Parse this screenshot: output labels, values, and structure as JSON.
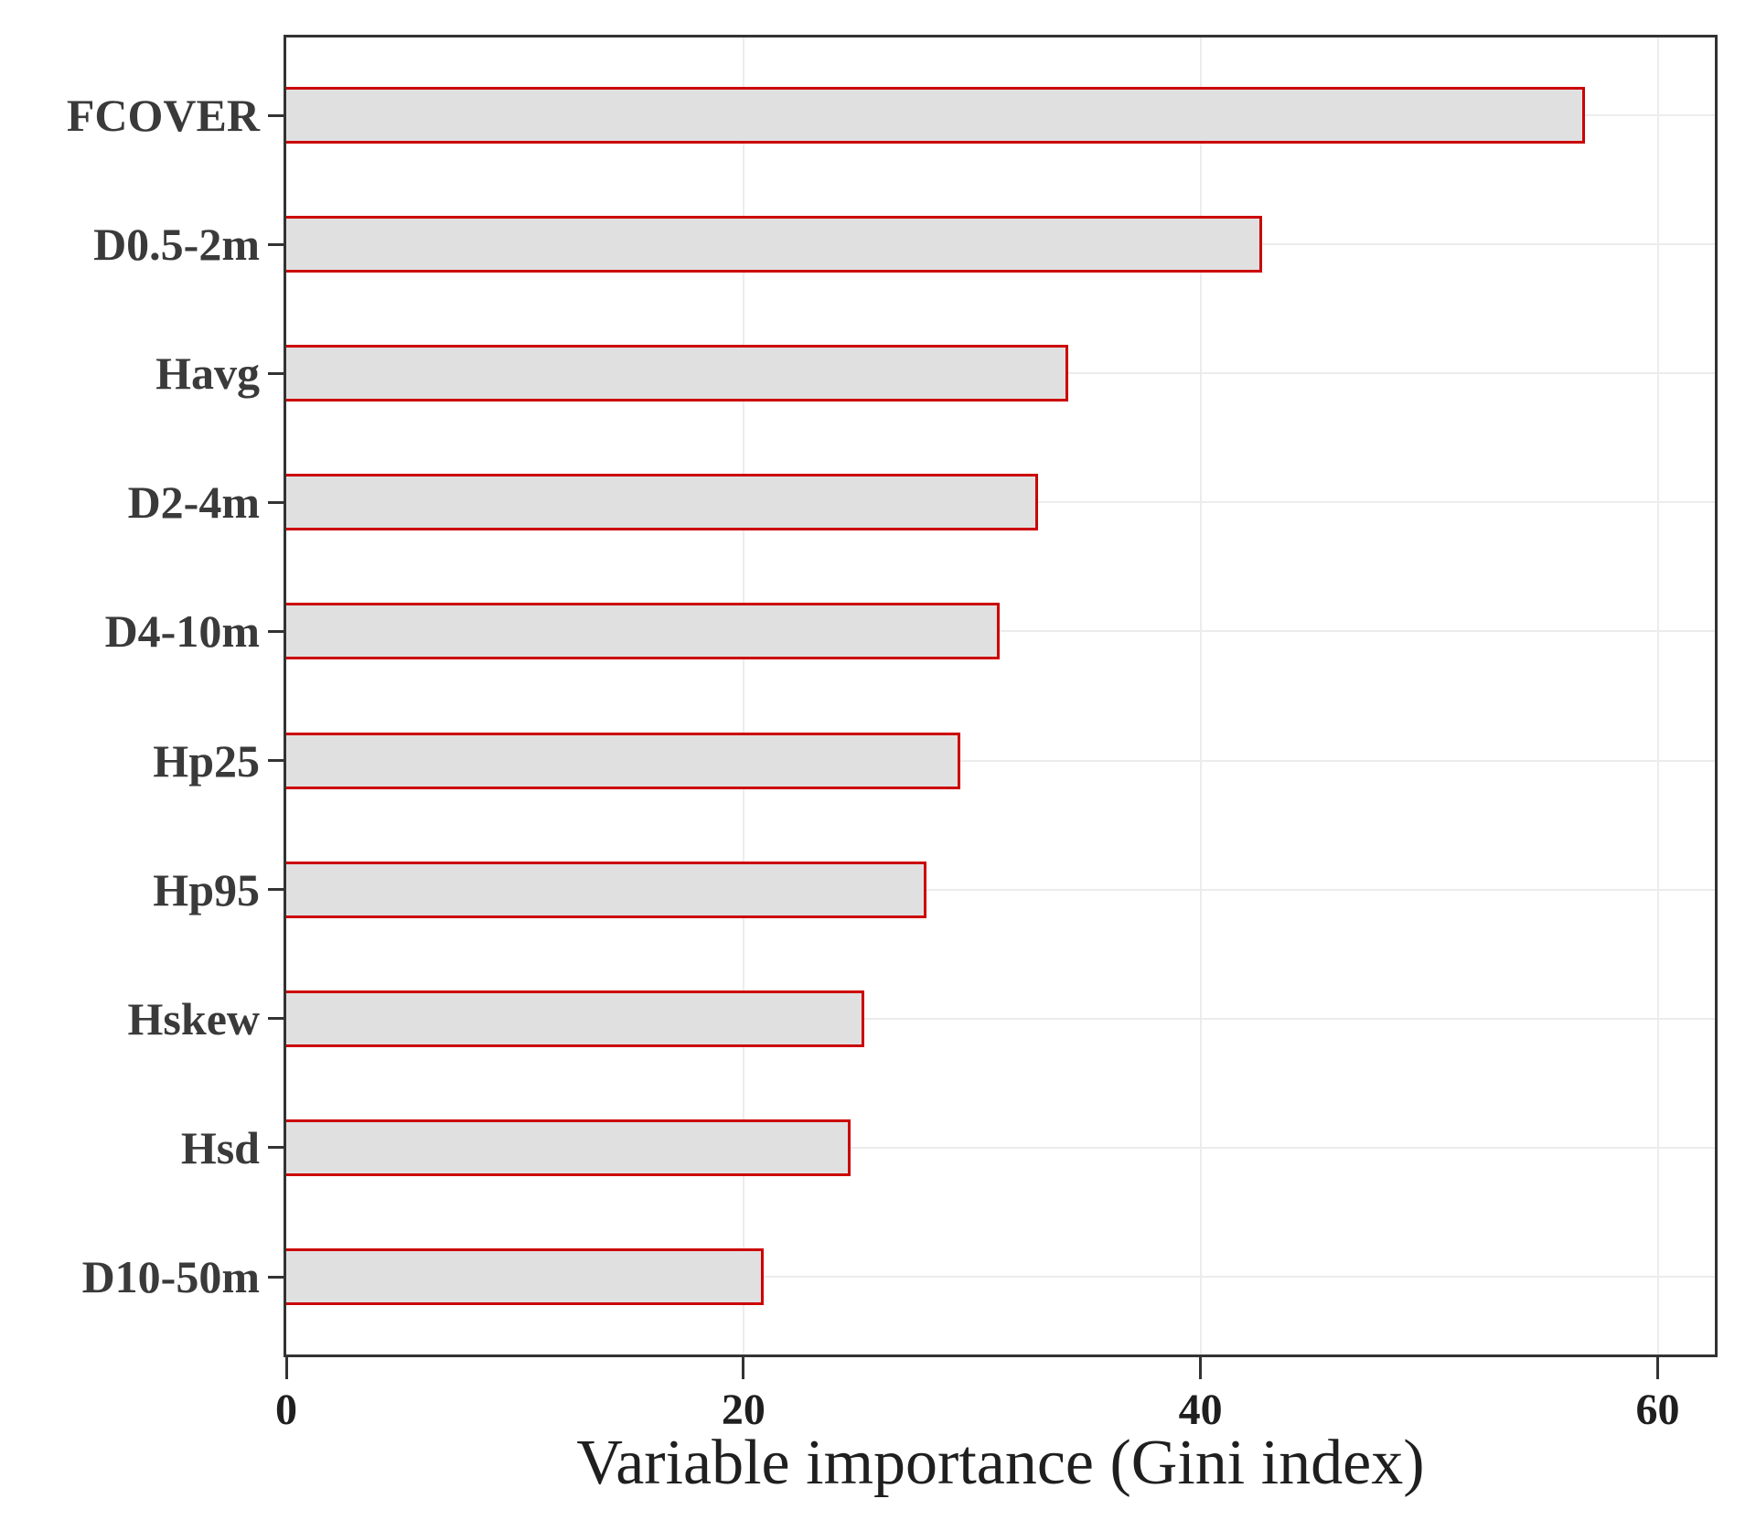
{
  "chart_data": {
    "type": "bar",
    "orientation": "horizontal",
    "title": "",
    "xlabel": "Variable importance (Gini index)",
    "ylabel": "",
    "categories": [
      "FCOVER",
      "D0.5-2m",
      "Havg",
      "D2-4m",
      "D4-10m",
      "Hp25",
      "Hp95",
      "Hskew",
      "Hsd",
      "D10-50m"
    ],
    "values": [
      56.8,
      42.7,
      34.2,
      32.9,
      31.2,
      29.5,
      28.0,
      25.3,
      24.7,
      20.9
    ],
    "xlim": [
      0,
      62.5
    ],
    "xticks": [
      0,
      20,
      40,
      60
    ],
    "xtick_labels": [
      "0",
      "20",
      "40",
      "60"
    ],
    "grid": "major vertical at xticks, horizontal at each category center",
    "legend": "none",
    "colors": {
      "bar_fill": "#e0e0e0",
      "bar_border": "#cc0000",
      "panel_border": "#333333",
      "gridline": "#ececec",
      "label_text": "#3a3a3a",
      "tick_text": "#1f1f1f"
    }
  }
}
